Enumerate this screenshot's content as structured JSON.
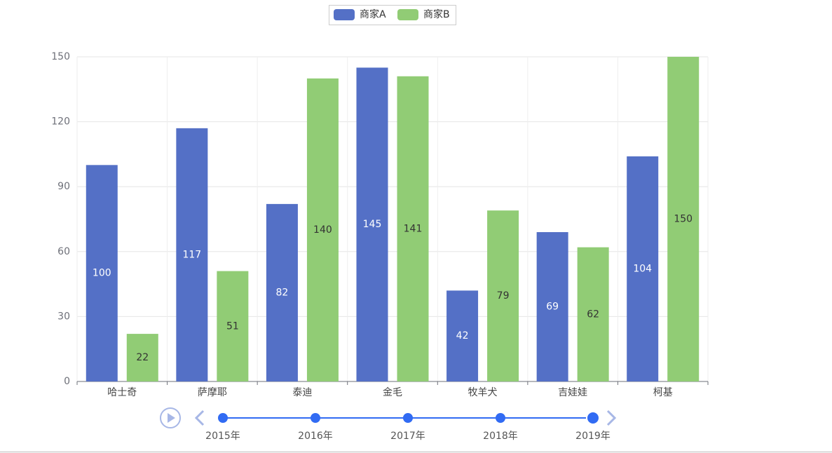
{
  "chart_data": {
    "type": "bar",
    "categories": [
      "哈士奇",
      "萨摩耶",
      "泰迪",
      "金毛",
      "牧羊犬",
      "吉娃娃",
      "柯基"
    ],
    "series": [
      {
        "name": "商家A",
        "color": "#5470c6",
        "values": [
          100,
          117,
          82,
          145,
          42,
          69,
          104
        ]
      },
      {
        "name": "商家B",
        "color": "#91cc75",
        "values": [
          22,
          51,
          140,
          141,
          79,
          62,
          150
        ]
      }
    ],
    "ylim": [
      0,
      150
    ],
    "yticks": [
      0,
      30,
      60,
      90,
      120,
      150
    ],
    "grid": true,
    "timeline": [
      "2015年",
      "2016年",
      "2017年",
      "2018年",
      "2019年"
    ]
  }
}
